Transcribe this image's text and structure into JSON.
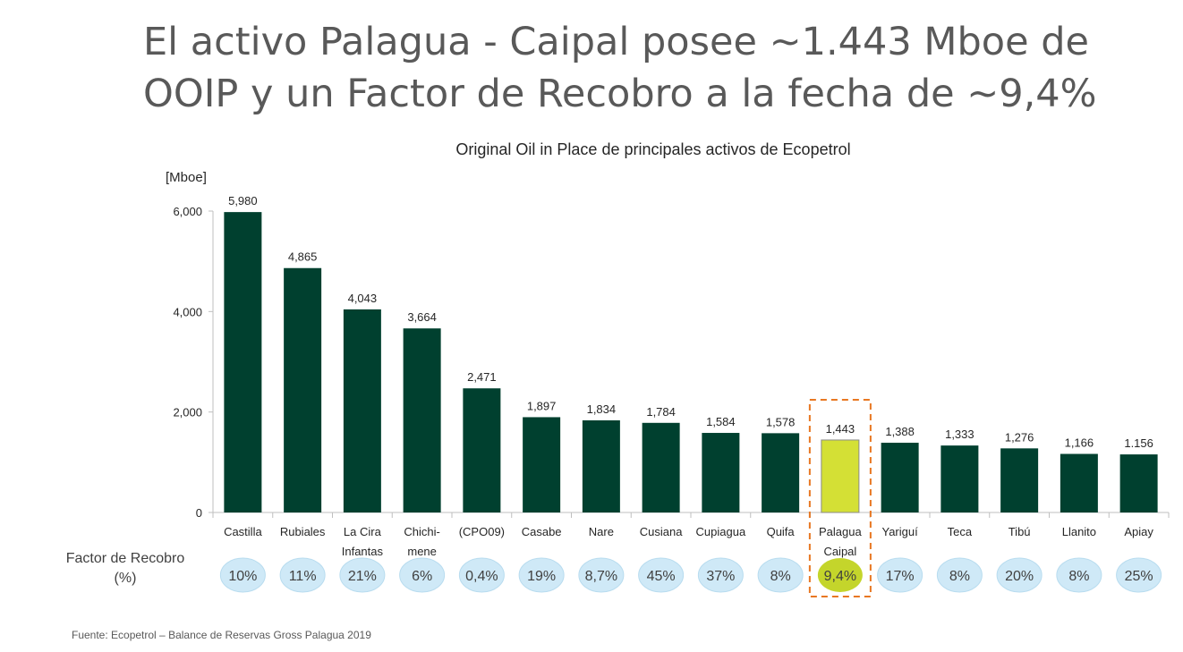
{
  "title_line1": "El activo Palagua - Caipal posee ~1.443 Mboe de",
  "title_line2": "OOIP y un Factor de Recobro a la fecha de ~9,4%",
  "recovery_factor_label_line1": "Factor de Recobro",
  "recovery_factor_label_line2": "(%)",
  "source": "Fuente: Ecopetrol – Balance de Reservas Gross Palagua 2019",
  "colors": {
    "bar": "#00402f",
    "highlight_bar": "#d4e035",
    "bubble": "#cfe9f7",
    "highlight_bubble": "#c4d52b",
    "highlight_box": "#e87722"
  },
  "chart_data": {
    "type": "bar",
    "title": "Original Oil in Place de principales activos de Ecopetrol",
    "ylabel": "[Mboe]",
    "ylim": [
      0,
      6000
    ],
    "yticks": [
      "0",
      "2,000",
      "4,000",
      "6,000"
    ],
    "ytick_values": [
      0,
      2000,
      4000,
      6000
    ],
    "grid": false,
    "categories": [
      "Castilla",
      "Rubiales",
      "La Cira Infantas",
      "Chichi-mene",
      "(CPO09)",
      "Casabe",
      "Nare",
      "Cusiana",
      "Cupiagua",
      "Quifa",
      "Palagua Caipal",
      "Yariguí",
      "Teca",
      "Tibú",
      "Llanito",
      "Apiay"
    ],
    "category_lines": [
      [
        "Castilla"
      ],
      [
        "Rubiales"
      ],
      [
        "La Cira",
        "Infantas"
      ],
      [
        "Chichi-",
        "mene"
      ],
      [
        "(CPO09)"
      ],
      [
        "Casabe"
      ],
      [
        "Nare"
      ],
      [
        "Cusiana"
      ],
      [
        "Cupiagua"
      ],
      [
        "Quifa"
      ],
      [
        "Palagua",
        "Caipal"
      ],
      [
        "Yariguí"
      ],
      [
        "Teca"
      ],
      [
        "Tibú"
      ],
      [
        "Llanito"
      ],
      [
        "Apiay"
      ]
    ],
    "values": [
      5980,
      4865,
      4043,
      3664,
      2471,
      1897,
      1834,
      1784,
      1584,
      1578,
      1443,
      1388,
      1333,
      1276,
      1166,
      1156
    ],
    "value_labels": [
      "5,980",
      "4,865",
      "4,043",
      "3,664",
      "2,471",
      "1,897",
      "1,834",
      "1,784",
      "1,584",
      "1,578",
      "1,443",
      "1,388",
      "1,333",
      "1,276",
      "1,166",
      "1.156"
    ],
    "recovery_factor": [
      "10%",
      "11%",
      "21%",
      "6%",
      "0,4%",
      "19%",
      "8,7%",
      "45%",
      "37%",
      "8%",
      "9,4%",
      "17%",
      "8%",
      "20%",
      "8%",
      "25%"
    ],
    "highlight": "Palagua Caipal"
  }
}
